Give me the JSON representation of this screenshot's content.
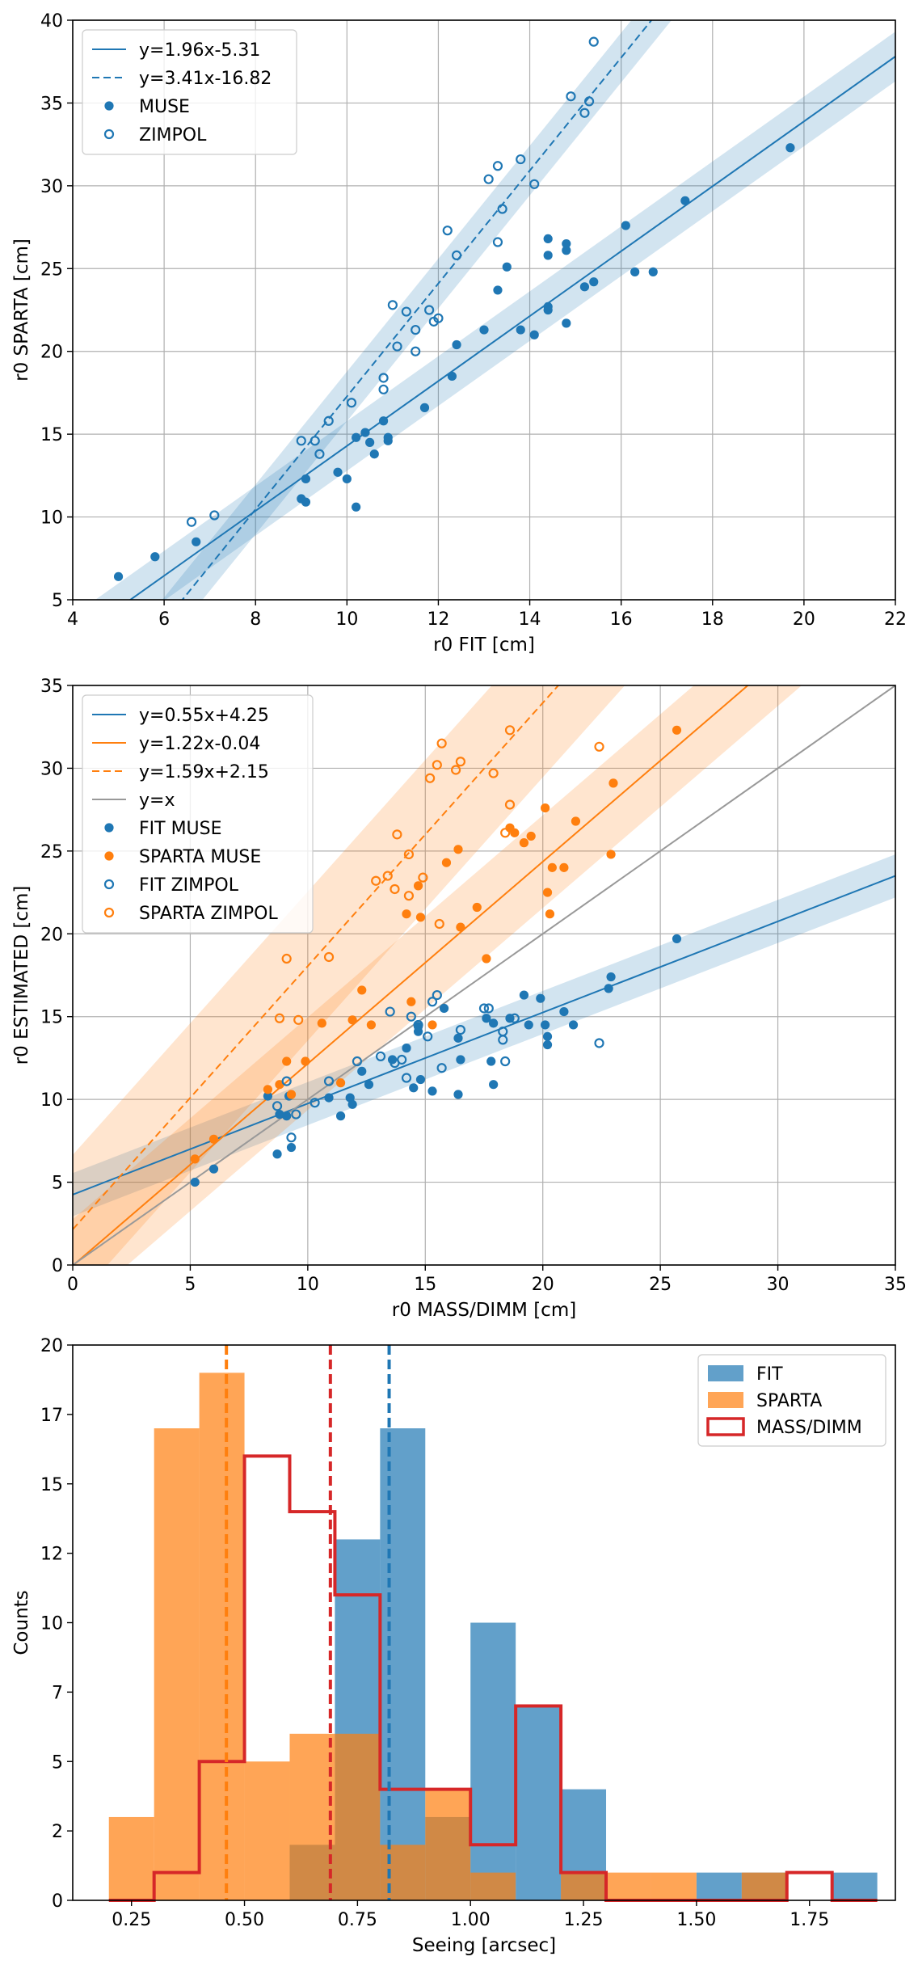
{
  "colors": {
    "blue": "#1f77b4",
    "orange": "#ff7f0e",
    "red": "#d62728",
    "gray": "#999999",
    "grid": "#b0b0b0"
  },
  "chart_data": [
    {
      "type": "scatter",
      "xlabel": "r0 FIT [cm]",
      "ylabel": "r0 SPARTA [cm]",
      "xlim": [
        4,
        22
      ],
      "ylim": [
        5,
        40
      ],
      "xticks": [
        4,
        6,
        8,
        10,
        12,
        14,
        16,
        18,
        20,
        22
      ],
      "yticks": [
        5,
        10,
        15,
        20,
        25,
        30,
        35,
        40
      ],
      "grid": true,
      "legend_position": "upper-left",
      "lines": [
        {
          "label": "y=1.96x-5.31",
          "slope": 1.96,
          "intercept": -5.31,
          "style": "solid",
          "color": "blue",
          "band": 1.5
        },
        {
          "label": "y=3.41x-16.82",
          "slope": 3.41,
          "intercept": -16.82,
          "style": "dashed",
          "color": "blue",
          "band": 1.5
        }
      ],
      "series": [
        {
          "name": "MUSE",
          "marker": "filled",
          "color": "blue",
          "points": [
            [
              5,
              6.4
            ],
            [
              5.8,
              7.6
            ],
            [
              6.7,
              8.5
            ],
            [
              9,
              11.1
            ],
            [
              9.1,
              10.9
            ],
            [
              9.1,
              12.3
            ],
            [
              9.8,
              12.7
            ],
            [
              10,
              12.3
            ],
            [
              10.2,
              10.6
            ],
            [
              10.2,
              14.8
            ],
            [
              10.4,
              15.1
            ],
            [
              10.5,
              14.5
            ],
            [
              10.6,
              13.8
            ],
            [
              10.8,
              15.8
            ],
            [
              10.9,
              14.6
            ],
            [
              10.9,
              14.8
            ],
            [
              11.7,
              16.6
            ],
            [
              12.3,
              18.5
            ],
            [
              12.4,
              20.4
            ],
            [
              13,
              21.3
            ],
            [
              13.3,
              23.7
            ],
            [
              13.5,
              25.1
            ],
            [
              13.8,
              21.3
            ],
            [
              14.1,
              21
            ],
            [
              14.4,
              22.7
            ],
            [
              14.4,
              22.5
            ],
            [
              14.4,
              26.8
            ],
            [
              14.4,
              25.8
            ],
            [
              14.8,
              26.1
            ],
            [
              14.8,
              26.5
            ],
            [
              14.8,
              21.7
            ],
            [
              15.2,
              23.9
            ],
            [
              15.4,
              24.2
            ],
            [
              16.1,
              27.6
            ],
            [
              16.3,
              24.8
            ],
            [
              16.7,
              24.8
            ],
            [
              17.4,
              29.1
            ],
            [
              19.7,
              32.3
            ]
          ]
        },
        {
          "name": "ZIMPOL",
          "marker": "open",
          "color": "blue",
          "points": [
            [
              6.6,
              9.7
            ],
            [
              7.1,
              10.1
            ],
            [
              9,
              14.6
            ],
            [
              9.3,
              14.6
            ],
            [
              9.4,
              13.8
            ],
            [
              9.6,
              15.8
            ],
            [
              10.1,
              16.9
            ],
            [
              10.8,
              17.7
            ],
            [
              10.8,
              18.4
            ],
            [
              11,
              22.8
            ],
            [
              11.1,
              20.3
            ],
            [
              11.3,
              22.4
            ],
            [
              11.5,
              21.3
            ],
            [
              11.5,
              20
            ],
            [
              11.8,
              22.5
            ],
            [
              11.9,
              21.8
            ],
            [
              12,
              22
            ],
            [
              12.2,
              27.3
            ],
            [
              12.4,
              25.8
            ],
            [
              13.1,
              30.4
            ],
            [
              13.3,
              31.2
            ],
            [
              13.3,
              26.6
            ],
            [
              13.4,
              28.6
            ],
            [
              13.8,
              31.6
            ],
            [
              14.1,
              30.1
            ],
            [
              14.9,
              35.4
            ],
            [
              15.2,
              34.4
            ],
            [
              15.3,
              35.1
            ],
            [
              15.4,
              38.7
            ]
          ]
        }
      ]
    },
    {
      "type": "scatter",
      "xlabel": "r0 MASS/DIMM [cm]",
      "ylabel": "r0 ESTIMATED [cm]",
      "xlim": [
        0,
        35
      ],
      "ylim": [
        0,
        35
      ],
      "xticks": [
        0,
        5,
        10,
        15,
        20,
        25,
        30,
        35
      ],
      "yticks": [
        0,
        5,
        10,
        15,
        20,
        25,
        30,
        35
      ],
      "grid": true,
      "legend_position": "upper-left",
      "lines": [
        {
          "label": "y=0.55x+4.25",
          "slope": 0.55,
          "intercept": 4.25,
          "style": "solid",
          "color": "blue",
          "band": 1.3
        },
        {
          "label": "y=1.22x-0.04",
          "slope": 1.22,
          "intercept": -0.04,
          "style": "solid",
          "color": "orange",
          "band": 2.8
        },
        {
          "label": "y=1.59x+2.15",
          "slope": 1.59,
          "intercept": 2.15,
          "style": "dashed",
          "color": "orange",
          "band": 4.5
        },
        {
          "label": "y=x",
          "slope": 1,
          "intercept": 0,
          "style": "solid",
          "color": "gray",
          "band": 0
        }
      ],
      "series": [
        {
          "name": "FIT MUSE",
          "marker": "filled",
          "color": "blue",
          "points": [
            [
              5.2,
              5
            ],
            [
              6,
              5.8
            ],
            [
              8.7,
              6.7
            ],
            [
              9.3,
              7.1
            ],
            [
              8.3,
              10.2
            ],
            [
              8.8,
              9.1
            ],
            [
              9.1,
              9
            ],
            [
              9.2,
              10.2
            ],
            [
              10.9,
              10.1
            ],
            [
              11.4,
              9
            ],
            [
              11.8,
              10.1
            ],
            [
              11.9,
              9.7
            ],
            [
              12.6,
              10.9
            ],
            [
              12.3,
              11.7
            ],
            [
              13.6,
              12.4
            ],
            [
              14.2,
              13.1
            ],
            [
              14.5,
              10.7
            ],
            [
              14.7,
              14.4
            ],
            [
              14.7,
              14.1
            ],
            [
              14.8,
              11.2
            ],
            [
              15.3,
              10.5
            ],
            [
              15.8,
              15.5
            ],
            [
              16.4,
              13.7
            ],
            [
              16.4,
              10.3
            ],
            [
              16.5,
              12.4
            ],
            [
              17.6,
              14.9
            ],
            [
              17.8,
              12.3
            ],
            [
              17.9,
              10.9
            ],
            [
              17.9,
              14.6
            ],
            [
              18.6,
              14.9
            ],
            [
              19.2,
              16.3
            ],
            [
              19.4,
              14.5
            ],
            [
              19.9,
              16.1
            ],
            [
              20.1,
              14.5
            ],
            [
              20.2,
              13.3
            ],
            [
              20.2,
              13.8
            ],
            [
              20.9,
              15.3
            ],
            [
              21.3,
              14.5
            ],
            [
              22.8,
              16.7
            ],
            [
              22.9,
              17.4
            ],
            [
              25.7,
              19.7
            ]
          ]
        },
        {
          "name": "SPARTA MUSE",
          "marker": "filled",
          "color": "orange",
          "points": [
            [
              5.2,
              6.4
            ],
            [
              6,
              7.6
            ],
            [
              8.3,
              10.6
            ],
            [
              8.8,
              10.9
            ],
            [
              9.1,
              12.3
            ],
            [
              9.3,
              10.3
            ],
            [
              9.9,
              12.3
            ],
            [
              10.6,
              14.6
            ],
            [
              11.4,
              11
            ],
            [
              11.9,
              14.8
            ],
            [
              12.3,
              16.6
            ],
            [
              12.7,
              14.5
            ],
            [
              14.2,
              21.2
            ],
            [
              14.4,
              15.9
            ],
            [
              14.7,
              22.9
            ],
            [
              14.8,
              21
            ],
            [
              15.3,
              14.5
            ],
            [
              15.9,
              24.3
            ],
            [
              16.4,
              25.1
            ],
            [
              16.5,
              20.4
            ],
            [
              17.2,
              21.6
            ],
            [
              17.6,
              18.5
            ],
            [
              18.6,
              26.4
            ],
            [
              18.8,
              26.1
            ],
            [
              19.2,
              25.5
            ],
            [
              19.5,
              25.9
            ],
            [
              20.1,
              27.6
            ],
            [
              20.2,
              22.5
            ],
            [
              20.3,
              21.2
            ],
            [
              20.4,
              24
            ],
            [
              20.9,
              24
            ],
            [
              21.4,
              26.8
            ],
            [
              22.9,
              24.8
            ],
            [
              23,
              29.1
            ],
            [
              25.7,
              32.3
            ]
          ]
        },
        {
          "name": "FIT ZIMPOL",
          "marker": "open",
          "color": "blue",
          "points": [
            [
              9.3,
              7.7
            ],
            [
              8.7,
              9.6
            ],
            [
              9.1,
              11.1
            ],
            [
              9.5,
              9.1
            ],
            [
              10.3,
              9.8
            ],
            [
              10.9,
              11.1
            ],
            [
              12.1,
              12.3
            ],
            [
              13.1,
              12.6
            ],
            [
              13.5,
              15.3
            ],
            [
              13.7,
              12.2
            ],
            [
              14,
              12.4
            ],
            [
              14.2,
              11.3
            ],
            [
              14.4,
              15
            ],
            [
              14.7,
              14.5
            ],
            [
              15.1,
              13.8
            ],
            [
              15.3,
              15.9
            ],
            [
              15.5,
              16.3
            ],
            [
              15.7,
              11.9
            ],
            [
              16.5,
              14.2
            ],
            [
              17.5,
              15.5
            ],
            [
              17.7,
              15.5
            ],
            [
              18.3,
              14.1
            ],
            [
              18.3,
              13.6
            ],
            [
              18.4,
              12.3
            ],
            [
              18.8,
              14.9
            ],
            [
              22.4,
              13.4
            ]
          ]
        },
        {
          "name": "SPARTA ZIMPOL",
          "marker": "open",
          "color": "orange",
          "points": [
            [
              8.8,
              14.9
            ],
            [
              9.1,
              18.5
            ],
            [
              9.6,
              14.8
            ],
            [
              10.9,
              18.6
            ],
            [
              12.9,
              23.2
            ],
            [
              13.4,
              23.5
            ],
            [
              13.7,
              22.7
            ],
            [
              13.8,
              26
            ],
            [
              14.3,
              22.3
            ],
            [
              14.3,
              24.8
            ],
            [
              14.9,
              23.4
            ],
            [
              15.2,
              29.4
            ],
            [
              15.5,
              30.2
            ],
            [
              15.6,
              20.6
            ],
            [
              15.7,
              31.5
            ],
            [
              16.3,
              29.9
            ],
            [
              16.5,
              30.4
            ],
            [
              17.9,
              29.7
            ],
            [
              18.4,
              26.1
            ],
            [
              18.6,
              27.8
            ],
            [
              18.6,
              32.3
            ],
            [
              22.4,
              31.3
            ]
          ]
        }
      ]
    },
    {
      "type": "histogram",
      "xlabel": "Seeing [arcsec]",
      "ylabel": "Counts",
      "xlim": [
        0.12,
        1.94
      ],
      "ylim": [
        0,
        20
      ],
      "xticks": [
        0.25,
        0.5,
        0.75,
        1.0,
        1.25,
        1.5,
        1.75
      ],
      "xtick_labels": [
        "0.25",
        "0.50",
        "0.75",
        "1.00",
        "1.25",
        "1.50",
        "1.75"
      ],
      "yticks": [
        0,
        2.5,
        5,
        7.5,
        10,
        12.5,
        15,
        17.5,
        20
      ],
      "ytick_labels": [
        "0",
        "2",
        "5",
        "7",
        "10",
        "12",
        "15",
        "17",
        "20"
      ],
      "grid": false,
      "legend_position": "upper-right",
      "bin_edges": [
        0.2,
        0.3,
        0.4,
        0.5,
        0.6,
        0.7,
        0.8,
        0.9,
        1.0,
        1.1,
        1.2,
        1.3,
        1.4,
        1.5,
        1.6,
        1.7,
        1.8,
        1.9
      ],
      "series": [
        {
          "name": "FIT",
          "style": "filled",
          "color": "blue",
          "counts": [
            0,
            0,
            0,
            0,
            2,
            13,
            17,
            3,
            10,
            7,
            4,
            0,
            0,
            1,
            1,
            0,
            1
          ],
          "median": 0.82
        },
        {
          "name": "SPARTA",
          "style": "filled",
          "color": "orange",
          "counts": [
            3,
            17,
            19,
            5,
            6,
            6,
            2,
            4,
            1,
            0,
            1,
            1,
            1,
            0,
            1,
            0,
            0
          ],
          "median": 0.46
        },
        {
          "name": "MASS/DIMM",
          "style": "step",
          "color": "red",
          "counts": [
            0,
            1,
            5,
            16,
            14,
            11,
            4,
            4,
            2,
            7,
            1,
            0,
            0,
            0,
            0,
            1,
            0
          ],
          "median": 0.69
        }
      ]
    }
  ]
}
